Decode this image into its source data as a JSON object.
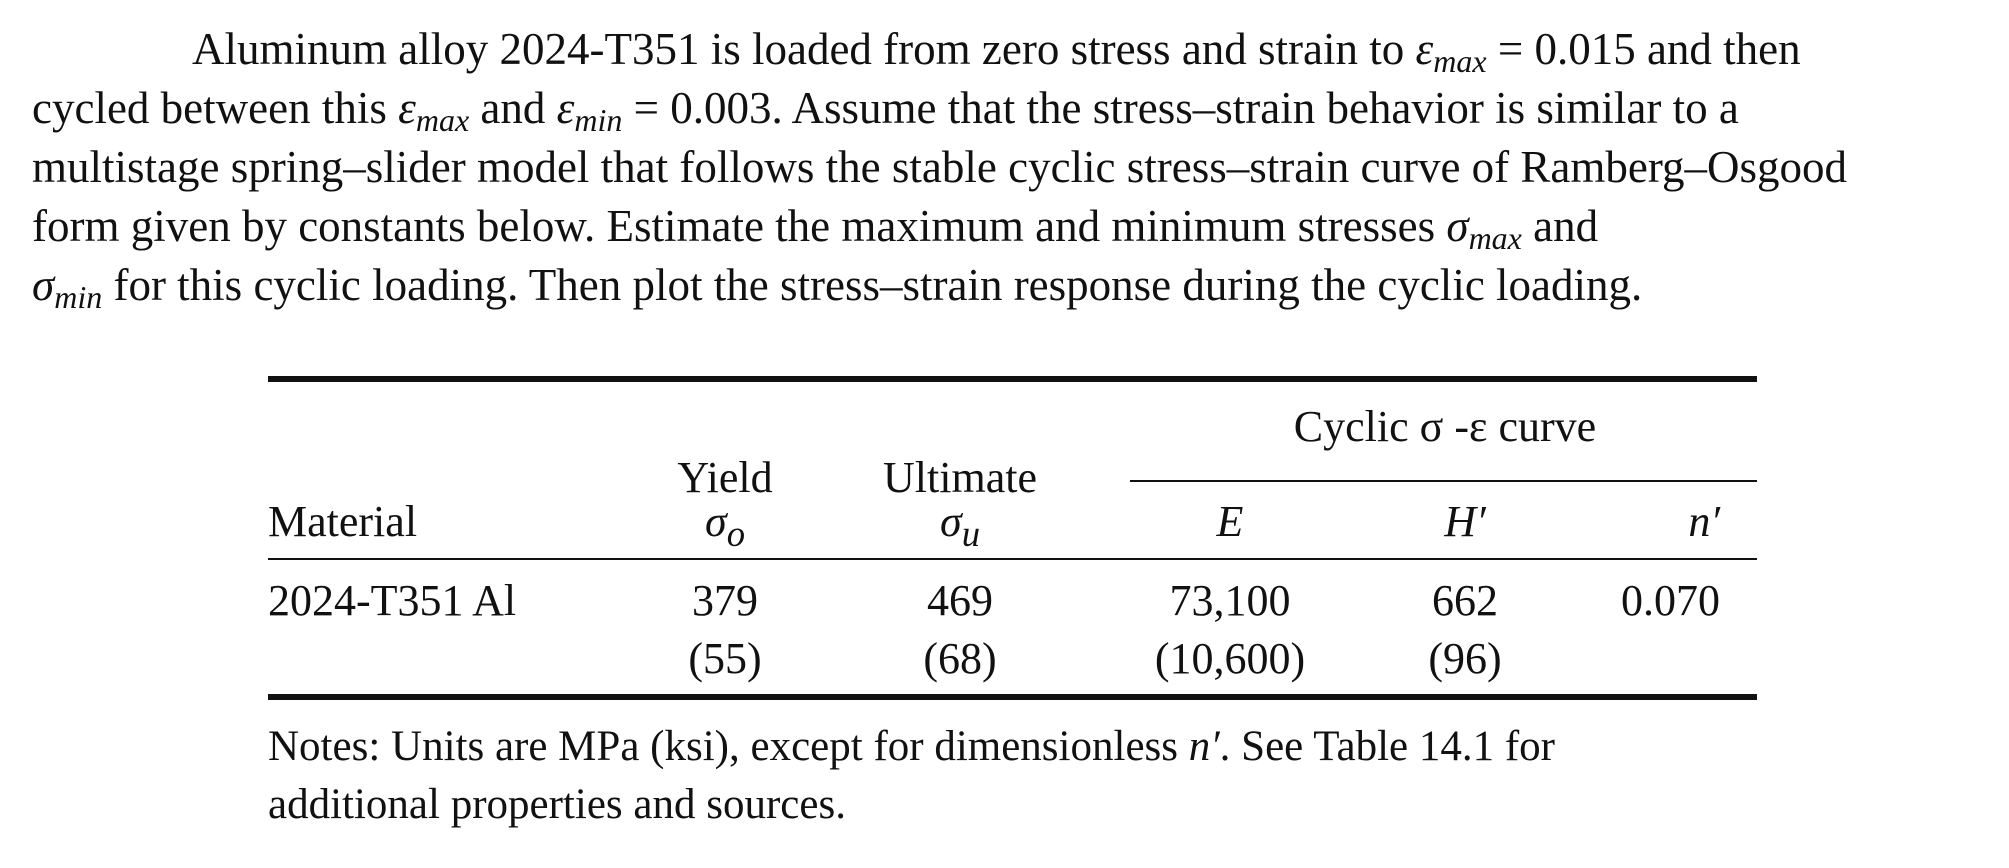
{
  "problem": {
    "line1_a": "Aluminum alloy 2024-T351 is loaded from zero stress and strain to ",
    "eps": "ε",
    "max": "max",
    "min": "min",
    "sigma": "σ",
    "line1_b": " = 0.015 and then",
    "line2_a": "cycled between this ",
    "line2_b": " and ",
    "line2_c": " = 0.003. Assume that the stress–strain behavior is similar to a",
    "line3": "multistage spring–slider model that follows the stable cyclic stress–strain curve of Ramberg–Osgood",
    "line4_a": "form given by constants below. Estimate the maximum and minimum stresses ",
    "line4_b": " and",
    "line5_b": " for this cyclic loading. Then plot the stress–strain response during the cyclic loading."
  },
  "table": {
    "group_header": "Cyclic σ -ε curve",
    "headers": {
      "material": "Material",
      "yield": "Yield",
      "yield_sym": "σ",
      "yield_sub": "o",
      "ultimate": "Ultimate",
      "ultimate_sym": "σ",
      "ultimate_sub": "u",
      "E": "E",
      "H": "H′",
      "n": "n′"
    },
    "row": {
      "material": "2024-T351 Al",
      "yield_mpa": "379",
      "yield_ksi": "(55)",
      "ultimate_mpa": "469",
      "ultimate_ksi": "(68)",
      "E_mpa": "73,100",
      "E_ksi": "(10,600)",
      "H_mpa": "662",
      "H_ksi": "(96)",
      "n": "0.070"
    },
    "notes_line1_a": "Notes: Units are MPa (ksi), except for dimensionless ",
    "notes_n": "n′",
    "notes_line1_b": ". See Table 14.1 for",
    "notes_line2": "additional properties and sources."
  }
}
